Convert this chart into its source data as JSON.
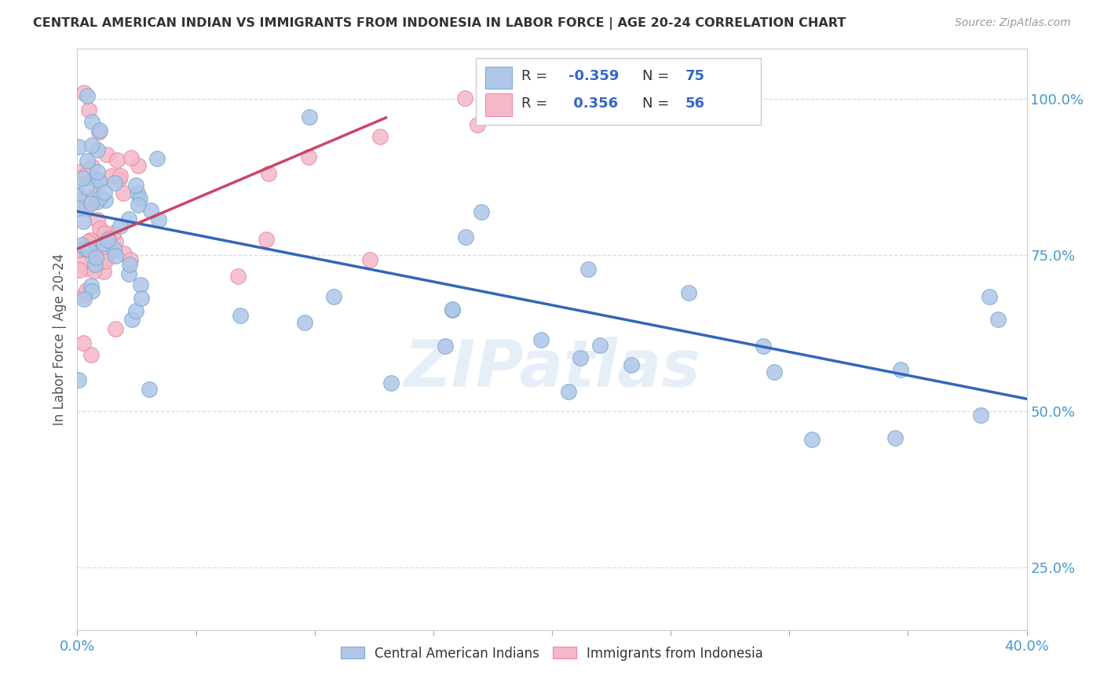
{
  "title": "CENTRAL AMERICAN INDIAN VS IMMIGRANTS FROM INDONESIA IN LABOR FORCE | AGE 20-24 CORRELATION CHART",
  "source": "Source: ZipAtlas.com",
  "xmin": 0.0,
  "xmax": 40.0,
  "ymin": 15.0,
  "ymax": 108.0,
  "yticks": [
    25,
    50,
    75,
    100
  ],
  "ytick_labels": [
    "25.0%",
    "50.0%",
    "75.0%",
    "100.0%"
  ],
  "legend_blue_r": "-0.359",
  "legend_blue_n": "75",
  "legend_pink_r": "0.356",
  "legend_pink_n": "56",
  "blue_color": "#aec6e8",
  "pink_color": "#f4b8c8",
  "blue_edge": "#7aaad0",
  "pink_edge": "#e888a0",
  "blue_trend": "#3366bb",
  "pink_trend": "#cc4466",
  "watermark": "ZIPatlas",
  "legend_label_blue": "Central American Indians",
  "legend_label_pink": "Immigrants from Indonesia",
  "blue_trend_x0": 0.0,
  "blue_trend_y0": 82.0,
  "blue_trend_x1": 40.0,
  "blue_trend_y1": 52.0,
  "pink_trend_x0": 0.0,
  "pink_trend_y0": 76.0,
  "pink_trend_x1": 13.0,
  "pink_trend_y1": 97.0,
  "r_color": "#3366cc",
  "n_color": "#3366cc",
  "label_color": "#333333",
  "tick_color": "#4499cc",
  "grid_color": "#dddddd",
  "ylabel_text": "In Labor Force | Age 20-24"
}
